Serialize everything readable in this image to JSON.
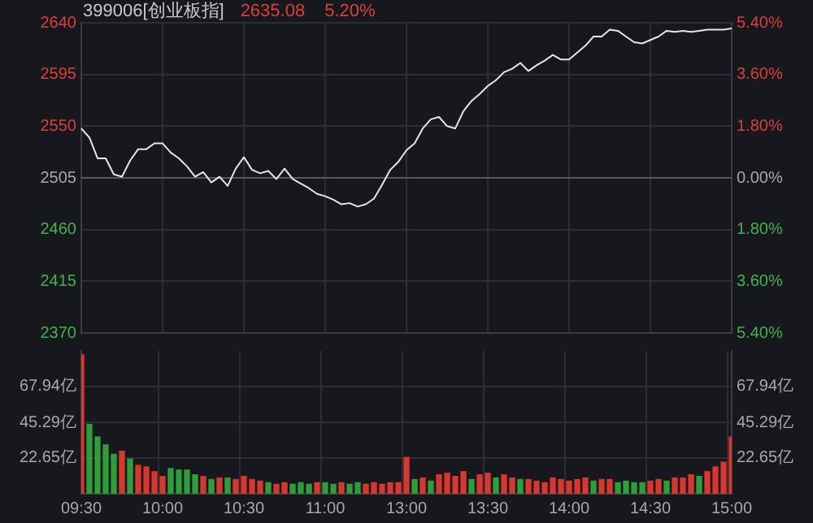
{
  "chart_data": [
    {
      "type": "line",
      "title": "399006[创业板指]",
      "annotations": [
        "2635.08",
        "5.20%"
      ],
      "color": "#e6e6e6",
      "categories": [
        null,
        null,
        null,
        null,
        null,
        null,
        null,
        null,
        null,
        null,
        null,
        null,
        null,
        null,
        null,
        null,
        null,
        null,
        null,
        null,
        null,
        null,
        null,
        null,
        null,
        null,
        null,
        null,
        null,
        null,
        null,
        null,
        null,
        null,
        null,
        null,
        null,
        null,
        null,
        null,
        null,
        null,
        null,
        null,
        null,
        null,
        null,
        null,
        null,
        null,
        null,
        null,
        null,
        null,
        null,
        null,
        null,
        null,
        null,
        null,
        null,
        null,
        null,
        null,
        null,
        null,
        null,
        null,
        null,
        null,
        null,
        null,
        null,
        null,
        null,
        null,
        null,
        null,
        null,
        null,
        null
      ],
      "values": [
        2548,
        2540,
        2522,
        2522,
        2508,
        2506,
        2520,
        2530,
        2530,
        2535,
        2535,
        2527,
        2522,
        2515,
        2506,
        2510,
        2501,
        2506,
        2498,
        2513,
        2523,
        2512,
        2509,
        2511,
        2504,
        2513,
        2504,
        2500,
        2496,
        2491,
        2489,
        2486,
        2482,
        2483,
        2480,
        2482,
        2487,
        2499,
        2512,
        2519,
        2529,
        2535,
        2548,
        2556,
        2558,
        2550,
        2548,
        2563,
        2572,
        2578,
        2585,
        2590,
        2597,
        2600,
        2605,
        2598,
        2603,
        2607,
        2612,
        2608,
        2608,
        2614,
        2620,
        2628,
        2628,
        2634,
        2633,
        2628,
        2623,
        2622,
        2625,
        2628,
        2633,
        2632,
        2633,
        2632,
        2633,
        2634,
        2634,
        2634,
        2635.08
      ],
      "ylim": [
        2370,
        2640
      ],
      "yticks": [
        2370,
        2415,
        2460,
        2505,
        2550,
        2595,
        2640
      ],
      "y2lim": [
        -5.4,
        5.4
      ],
      "y2ticks": [
        {
          "value": -5.4,
          "label": "5.40%"
        },
        {
          "value": -3.6,
          "label": "3.60%"
        },
        {
          "value": -1.8,
          "label": "1.80%"
        },
        {
          "value": 0,
          "label": "0.00%"
        },
        {
          "value": 1.8,
          "label": "1.80%"
        },
        {
          "value": 3.6,
          "label": "3.60%"
        },
        {
          "value": 5.4,
          "label": "5.40%"
        }
      ],
      "ref_lines": [
        {
          "axis": "y2",
          "value": 0,
          "color": "#55585e"
        }
      ],
      "grid": true,
      "legend": false,
      "tick_labels": "y"
    },
    {
      "type": "bar",
      "categories": [
        "09:30",
        null,
        null,
        null,
        null,
        null,
        null,
        null,
        null,
        null,
        "10:00",
        null,
        null,
        null,
        null,
        null,
        null,
        null,
        null,
        null,
        "10:30",
        null,
        null,
        null,
        null,
        null,
        null,
        null,
        null,
        null,
        "11:00",
        null,
        null,
        null,
        null,
        null,
        null,
        null,
        null,
        null,
        "13:00",
        null,
        null,
        null,
        null,
        null,
        null,
        null,
        null,
        null,
        "13:30",
        null,
        null,
        null,
        null,
        null,
        null,
        null,
        null,
        null,
        "14:00",
        null,
        null,
        null,
        null,
        null,
        null,
        null,
        null,
        null,
        "14:30",
        null,
        null,
        null,
        null,
        null,
        null,
        null,
        null,
        null,
        "15:00"
      ],
      "values": [
        88,
        44,
        36,
        31,
        25,
        27,
        22,
        18,
        17,
        14,
        11,
        16,
        15,
        15,
        12,
        11,
        9,
        10,
        10,
        9,
        11,
        9,
        8,
        7,
        6,
        7,
        6,
        7,
        6,
        7,
        7,
        6,
        7,
        6,
        7,
        6,
        7,
        6,
        7,
        7,
        23,
        9,
        10,
        8,
        12,
        13,
        11,
        14,
        9,
        12,
        13,
        10,
        12,
        10,
        9,
        9,
        8,
        7,
        10,
        9,
        8,
        9,
        10,
        8,
        9,
        9,
        7,
        8,
        7,
        7,
        8,
        9,
        8,
        10,
        10,
        12,
        11,
        14,
        17,
        20,
        36
      ],
      "colors": [
        "#d8372f",
        "#2e9e3a",
        "#2e9e3a",
        "#2e9e3a",
        "#2e9e3a",
        "#d8372f",
        "#2e9e3a",
        "#d8372f",
        "#d8372f",
        "#d8372f",
        "#d8372f",
        "#2e9e3a",
        "#2e9e3a",
        "#2e9e3a",
        "#2e9e3a",
        "#d8372f",
        "#2e9e3a",
        "#d8372f",
        "#2e9e3a",
        "#d8372f",
        "#d8372f",
        "#d8372f",
        "#d8372f",
        "#2e9e3a",
        "#d8372f",
        "#d8372f",
        "#2e9e3a",
        "#2e9e3a",
        "#2e9e3a",
        "#d8372f",
        "#2e9e3a",
        "#2e9e3a",
        "#d8372f",
        "#2e9e3a",
        "#2e9e3a",
        "#d8372f",
        "#d8372f",
        "#d8372f",
        "#d8372f",
        "#d8372f",
        "#d8372f",
        "#2e9e3a",
        "#d8372f",
        "#2e9e3a",
        "#d8372f",
        "#d8372f",
        "#d8372f",
        "#d8372f",
        "#2e9e3a",
        "#d8372f",
        "#d8372f",
        "#2e9e3a",
        "#d8372f",
        "#d8372f",
        "#2e9e3a",
        "#d8372f",
        "#d8372f",
        "#d8372f",
        "#d8372f",
        "#d8372f",
        "#d8372f",
        "#d8372f",
        "#d8372f",
        "#2e9e3a",
        "#d8372f",
        "#d8372f",
        "#2e9e3a",
        "#2e9e3a",
        "#2e9e3a",
        "#2e9e3a",
        "#d8372f",
        "#d8372f",
        "#2e9e3a",
        "#d8372f",
        "#d8372f",
        "#d8372f",
        "#2e9e3a",
        "#d8372f",
        "#d8372f",
        "#d8372f",
        "#d8372f"
      ],
      "ylim": [
        0,
        90.58
      ],
      "yticks": [
        {
          "value": 22.65,
          "label": "22.65亿"
        },
        {
          "value": 45.29,
          "label": "45.29亿"
        },
        {
          "value": 67.94,
          "label": "67.94亿"
        }
      ],
      "y2lim": [
        0,
        90.58
      ],
      "y2ticks": [
        {
          "value": 22.65,
          "label": "22.65亿"
        },
        {
          "value": 45.29,
          "label": "45.29亿"
        },
        {
          "value": 67.94,
          "label": "67.94亿"
        }
      ],
      "grid": true,
      "legend": false
    }
  ]
}
